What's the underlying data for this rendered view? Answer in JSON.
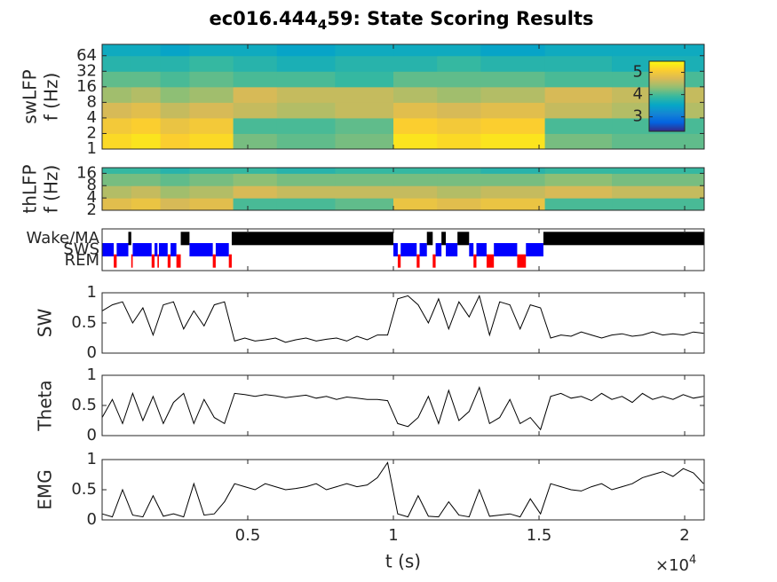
{
  "chart_data": [
    {
      "type": "heatmap",
      "title": "ec016.444",
      "title_subscript": "4",
      "title_suffix": "59: State Scoring Results",
      "ylabel": [
        "swLFP",
        "f (Hz)"
      ],
      "ylog": true,
      "xlim": [
        0,
        20670
      ],
      "ylim": [
        1,
        106
      ],
      "yticks": [
        1,
        2,
        4,
        8,
        16,
        32,
        64
      ],
      "x_edges": [
        0,
        1000,
        2000,
        3000,
        4500,
        6000,
        8000,
        10000,
        11500,
        13000,
        15200,
        17500,
        20670
      ],
      "y_edges": [
        1,
        2,
        4,
        8,
        16,
        32,
        64,
        106
      ],
      "values": [
        [
          5.2,
          5.3,
          5.1,
          5.2,
          4.2,
          4.1,
          4.2,
          5.3,
          5.2,
          5.3,
          4.2,
          4.1
        ],
        [
          5.0,
          5.1,
          4.9,
          5.0,
          4.0,
          4.0,
          4.1,
          5.1,
          5.0,
          5.1,
          4.0,
          4.0
        ],
        [
          4.7,
          4.8,
          4.6,
          4.7,
          4.6,
          4.5,
          4.6,
          4.8,
          4.7,
          4.8,
          4.6,
          4.5
        ],
        [
          4.4,
          4.5,
          4.3,
          4.4,
          4.7,
          4.6,
          4.6,
          4.5,
          4.4,
          4.5,
          4.7,
          4.6
        ],
        [
          4.1,
          4.1,
          4.0,
          4.1,
          4.0,
          4.0,
          3.9,
          4.1,
          4.1,
          4.1,
          4.0,
          4.0
        ],
        [
          3.8,
          3.8,
          3.8,
          3.9,
          3.8,
          3.7,
          3.8,
          3.8,
          3.9,
          3.8,
          3.8,
          3.7
        ],
        [
          3.6,
          3.6,
          3.5,
          3.6,
          3.6,
          3.5,
          3.6,
          3.6,
          3.6,
          3.5,
          3.6,
          3.6
        ]
      ],
      "clim": [
        2.35,
        5.5
      ],
      "colorbar_ticks": [
        3,
        4,
        5
      ],
      "colormap": [
        "#352a87",
        "#0363e1",
        "#1485d4",
        "#06a7c6",
        "#38b99e",
        "#92bf73",
        "#d9ba56",
        "#fcce2e",
        "#f9fb0e"
      ]
    },
    {
      "type": "heatmap",
      "ylabel": [
        "thLFP",
        "f (Hz)"
      ],
      "ylog": true,
      "xlim": [
        0,
        20670
      ],
      "ylim": [
        2,
        22
      ],
      "yticks": [
        2,
        4,
        8,
        16
      ],
      "x_edges": [
        0,
        1000,
        2000,
        3000,
        4500,
        6000,
        8000,
        10000,
        11500,
        13000,
        15200,
        17500,
        20670
      ],
      "y_edges": [
        2,
        4,
        8,
        16,
        22
      ],
      "values": [
        [
          4.8,
          4.9,
          4.7,
          4.8,
          4.0,
          4.0,
          4.1,
          4.9,
          4.8,
          4.9,
          4.0,
          4.0
        ],
        [
          4.5,
          4.6,
          4.4,
          4.5,
          4.7,
          4.6,
          4.6,
          4.6,
          4.5,
          4.6,
          4.7,
          4.6
        ],
        [
          4.2,
          4.2,
          4.1,
          4.2,
          4.3,
          4.2,
          4.2,
          4.2,
          4.2,
          4.2,
          4.3,
          4.2
        ],
        [
          3.9,
          3.9,
          3.8,
          3.9,
          3.9,
          3.8,
          3.9,
          3.9,
          3.9,
          3.8,
          3.9,
          3.9
        ]
      ],
      "clim": [
        2.35,
        5.5
      ],
      "colormap": [
        "#352a87",
        "#0363e1",
        "#1485d4",
        "#06a7c6",
        "#38b99e",
        "#92bf73",
        "#d9ba56",
        "#fcce2e",
        "#f9fb0e"
      ]
    },
    {
      "type": "states",
      "xlim": [
        0,
        20670
      ],
      "categories": [
        "Wake/MA",
        "SWS",
        "REM"
      ],
      "colors": [
        "#000000",
        "#0000ff",
        "#ff0000"
      ],
      "intervals": [
        {
          "start": 0,
          "end": 400,
          "state": 1
        },
        {
          "start": 400,
          "end": 500,
          "state": 2
        },
        {
          "start": 500,
          "end": 900,
          "state": 1
        },
        {
          "start": 900,
          "end": 1000,
          "state": 0
        },
        {
          "start": 1000,
          "end": 1050,
          "state": 2
        },
        {
          "start": 1050,
          "end": 1700,
          "state": 1
        },
        {
          "start": 1700,
          "end": 1800,
          "state": 2
        },
        {
          "start": 1800,
          "end": 1900,
          "state": 1
        },
        {
          "start": 1900,
          "end": 1950,
          "state": 2
        },
        {
          "start": 1950,
          "end": 2250,
          "state": 1
        },
        {
          "start": 2250,
          "end": 2350,
          "state": 2
        },
        {
          "start": 2350,
          "end": 2550,
          "state": 1
        },
        {
          "start": 2550,
          "end": 2700,
          "state": 2
        },
        {
          "start": 2700,
          "end": 3000,
          "state": 0
        },
        {
          "start": 3000,
          "end": 3800,
          "state": 1
        },
        {
          "start": 3800,
          "end": 3900,
          "state": 2
        },
        {
          "start": 3900,
          "end": 4350,
          "state": 1
        },
        {
          "start": 4350,
          "end": 4450,
          "state": 2
        },
        {
          "start": 4450,
          "end": 10000,
          "state": 0
        },
        {
          "start": 10000,
          "end": 10150,
          "state": 1
        },
        {
          "start": 10150,
          "end": 10250,
          "state": 2
        },
        {
          "start": 10250,
          "end": 10800,
          "state": 1
        },
        {
          "start": 10800,
          "end": 10900,
          "state": 2
        },
        {
          "start": 10900,
          "end": 11150,
          "state": 1
        },
        {
          "start": 11150,
          "end": 11350,
          "state": 0
        },
        {
          "start": 11350,
          "end": 11450,
          "state": 2
        },
        {
          "start": 11450,
          "end": 11650,
          "state": 1
        },
        {
          "start": 11650,
          "end": 11800,
          "state": 0
        },
        {
          "start": 11800,
          "end": 12200,
          "state": 1
        },
        {
          "start": 12200,
          "end": 12600,
          "state": 0
        },
        {
          "start": 12600,
          "end": 12750,
          "state": 1
        },
        {
          "start": 12750,
          "end": 12850,
          "state": 2
        },
        {
          "start": 12850,
          "end": 13200,
          "state": 1
        },
        {
          "start": 13200,
          "end": 13450,
          "state": 2
        },
        {
          "start": 13450,
          "end": 14250,
          "state": 1
        },
        {
          "start": 14250,
          "end": 14550,
          "state": 2
        },
        {
          "start": 14550,
          "end": 15150,
          "state": 1
        },
        {
          "start": 15150,
          "end": 20670,
          "state": 0
        }
      ]
    },
    {
      "type": "line",
      "ylabel": [
        "SW"
      ],
      "color": "#000000",
      "xlim": [
        0,
        20670
      ],
      "ylim": [
        0,
        1
      ],
      "yticks": [
        0,
        0.5,
        1
      ],
      "x": [
        0,
        350,
        700,
        1050,
        1400,
        1750,
        2100,
        2450,
        2800,
        3150,
        3500,
        3850,
        4200,
        4550,
        4900,
        5250,
        5600,
        5950,
        6300,
        6650,
        7000,
        7350,
        7700,
        8050,
        8400,
        8750,
        9100,
        9450,
        9800,
        10150,
        10500,
        10850,
        11200,
        11550,
        11900,
        12250,
        12600,
        12950,
        13300,
        13650,
        14000,
        14350,
        14700,
        15050,
        15400,
        15750,
        16100,
        16450,
        16800,
        17150,
        17500,
        17850,
        18200,
        18550,
        18900,
        19250,
        19600,
        19950,
        20300,
        20650
      ],
      "values": [
        0.7,
        0.8,
        0.85,
        0.5,
        0.75,
        0.3,
        0.8,
        0.85,
        0.4,
        0.7,
        0.45,
        0.8,
        0.85,
        0.2,
        0.25,
        0.2,
        0.22,
        0.25,
        0.18,
        0.22,
        0.25,
        0.2,
        0.23,
        0.25,
        0.2,
        0.28,
        0.22,
        0.3,
        0.3,
        0.9,
        0.95,
        0.8,
        0.5,
        0.9,
        0.4,
        0.85,
        0.6,
        0.95,
        0.3,
        0.85,
        0.8,
        0.4,
        0.8,
        0.75,
        0.25,
        0.3,
        0.28,
        0.35,
        0.3,
        0.25,
        0.3,
        0.32,
        0.28,
        0.3,
        0.35,
        0.3,
        0.32,
        0.3,
        0.35,
        0.33
      ]
    },
    {
      "type": "line",
      "ylabel": [
        "Theta"
      ],
      "color": "#000000",
      "xlim": [
        0,
        20670
      ],
      "ylim": [
        0,
        1
      ],
      "yticks": [
        0,
        0.5,
        1
      ],
      "x": [
        0,
        350,
        700,
        1050,
        1400,
        1750,
        2100,
        2450,
        2800,
        3150,
        3500,
        3850,
        4200,
        4550,
        4900,
        5250,
        5600,
        5950,
        6300,
        6650,
        7000,
        7350,
        7700,
        8050,
        8400,
        8750,
        9100,
        9450,
        9800,
        10150,
        10500,
        10850,
        11200,
        11550,
        11900,
        12250,
        12600,
        12950,
        13300,
        13650,
        14000,
        14350,
        14700,
        15050,
        15400,
        15750,
        16100,
        16450,
        16800,
        17150,
        17500,
        17850,
        18200,
        18550,
        18900,
        19250,
        19600,
        19950,
        20300,
        20650
      ],
      "values": [
        0.3,
        0.6,
        0.2,
        0.7,
        0.25,
        0.65,
        0.2,
        0.55,
        0.7,
        0.2,
        0.6,
        0.3,
        0.2,
        0.7,
        0.68,
        0.65,
        0.68,
        0.66,
        0.63,
        0.65,
        0.67,
        0.62,
        0.65,
        0.6,
        0.64,
        0.62,
        0.6,
        0.6,
        0.58,
        0.2,
        0.15,
        0.3,
        0.65,
        0.2,
        0.75,
        0.25,
        0.4,
        0.8,
        0.2,
        0.3,
        0.6,
        0.2,
        0.3,
        0.1,
        0.65,
        0.7,
        0.62,
        0.65,
        0.58,
        0.7,
        0.6,
        0.65,
        0.55,
        0.7,
        0.6,
        0.65,
        0.6,
        0.68,
        0.62,
        0.65
      ]
    },
    {
      "type": "line",
      "ylabel": [
        "EMG"
      ],
      "color": "#000000",
      "xlim": [
        0,
        20670
      ],
      "ylim": [
        0,
        1
      ],
      "yticks": [
        0,
        0.5,
        1
      ],
      "x": [
        0,
        350,
        700,
        1050,
        1400,
        1750,
        2100,
        2450,
        2800,
        3150,
        3500,
        3850,
        4200,
        4550,
        4900,
        5250,
        5600,
        5950,
        6300,
        6650,
        7000,
        7350,
        7700,
        8050,
        8400,
        8750,
        9100,
        9450,
        9800,
        10150,
        10500,
        10850,
        11200,
        11550,
        11900,
        12250,
        12600,
        12950,
        13300,
        13650,
        14000,
        14350,
        14700,
        15050,
        15400,
        15750,
        16100,
        16450,
        16800,
        17150,
        17500,
        17850,
        18200,
        18550,
        18900,
        19250,
        19600,
        19950,
        20300,
        20650
      ],
      "values": [
        0.1,
        0.05,
        0.5,
        0.08,
        0.05,
        0.4,
        0.06,
        0.1,
        0.05,
        0.6,
        0.08,
        0.1,
        0.3,
        0.6,
        0.55,
        0.5,
        0.6,
        0.55,
        0.5,
        0.52,
        0.55,
        0.6,
        0.5,
        0.55,
        0.6,
        0.55,
        0.58,
        0.7,
        0.95,
        0.1,
        0.05,
        0.4,
        0.06,
        0.05,
        0.3,
        0.08,
        0.05,
        0.5,
        0.06,
        0.08,
        0.1,
        0.05,
        0.35,
        0.1,
        0.6,
        0.55,
        0.5,
        0.48,
        0.55,
        0.6,
        0.5,
        0.55,
        0.6,
        0.7,
        0.75,
        0.8,
        0.72,
        0.85,
        0.78,
        0.6
      ],
      "xlabel": "t (s)",
      "xticks": [
        {
          "value": 5000,
          "label": "0.5"
        },
        {
          "value": 10000,
          "label": "1"
        },
        {
          "value": 15000,
          "label": "1.5"
        },
        {
          "value": 20000,
          "label": "2"
        }
      ],
      "x_exponent": {
        "base": "×10",
        "power": "4"
      }
    }
  ]
}
